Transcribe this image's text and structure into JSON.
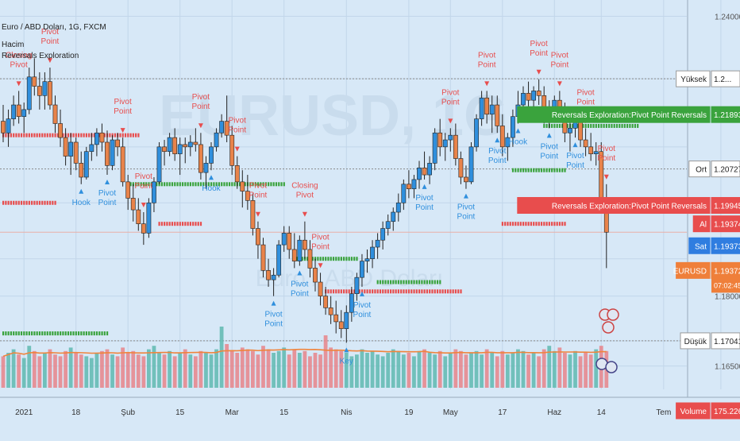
{
  "header": {
    "symbol_title": "Euro / ABD Doları, 1G, FXCM",
    "volume_label": "Hacim",
    "study_label": "Reversals Exploration"
  },
  "watermark": {
    "symbol": "EURUSD, 1G",
    "name": "Euro / ABD Doları"
  },
  "price_labels": [
    {
      "text": "Yüksek",
      "value": "1.2...",
      "price": 1.2266,
      "bg": "#ffffff",
      "fg": "#222222"
    },
    {
      "text": "Reversals Exploration:Pivot Point Reversals",
      "value": "1.21893",
      "price": 1.21893,
      "bg": "#3aa33d",
      "fg": "#ffffff"
    },
    {
      "text": "Ort",
      "value": "1.20727",
      "price": 1.20727,
      "bg": "#ffffff",
      "fg": "#222222"
    },
    {
      "text": "Reversals Exploration:Pivot Point Reversals",
      "value": "1.19945",
      "price": 1.19945,
      "bg": "#e84d4d",
      "fg": "#ffffff"
    },
    {
      "text": "Al",
      "value": "1.19374",
      "price": 1.1955,
      "bg": "#e84d4d",
      "fg": "#ffffff"
    },
    {
      "text": "Sat",
      "value": "1.19373",
      "price": 1.1908,
      "bg": "#2f7de0",
      "fg": "#ffffff"
    },
    {
      "text": "EURUSD",
      "value": "1.19372",
      "price": 1.1855,
      "bg": "#ef7f3a",
      "fg": "#ffffff",
      "sub": "07:02:45"
    },
    {
      "text": "Düşük",
      "value": "1.17041",
      "price": 1.17041,
      "bg": "#ffffff",
      "fg": "#222222"
    },
    {
      "text": "Volume",
      "value": "175.226K",
      "price": 1.1554,
      "bg": "#e84d4d",
      "fg": "#ffffff"
    }
  ],
  "y_axis_ticks": [
    {
      "label": "1.24000",
      "price": 1.24
    },
    {
      "label": "1.18000",
      "price": 1.18
    },
    {
      "label": "1.16500",
      "price": 1.165
    }
  ],
  "x_axis_ticks": [
    {
      "label": "2021",
      "index": 4
    },
    {
      "label": "18",
      "index": 14
    },
    {
      "label": "Şub",
      "index": 24
    },
    {
      "label": "15",
      "index": 34
    },
    {
      "label": "Mar",
      "index": 44
    },
    {
      "label": "15",
      "index": 54
    },
    {
      "label": "Nis",
      "index": 66
    },
    {
      "label": "19",
      "index": 78
    },
    {
      "label": "May",
      "index": 86
    },
    {
      "label": "17",
      "index": 96
    },
    {
      "label": "Haz",
      "index": 106
    },
    {
      "label": "14",
      "index": 115
    },
    {
      "label": "Tem",
      "index": 127
    },
    {
      "label": "19",
      "index": 138
    }
  ],
  "annotations": {
    "pivot_point_label": "Pivot Point",
    "hook_label": "Hook",
    "closing_pivot_label": "Closing Pivot",
    "key_label": "Key",
    "bear": [
      {
        "index": 3,
        "text": "Closing Pivot"
      },
      {
        "index": 9,
        "text": "Pivot Point"
      },
      {
        "index": 23,
        "text": "Pivot Point"
      },
      {
        "index": 27,
        "text": "Pivot Point"
      },
      {
        "index": 38,
        "text": "Pivot Point"
      },
      {
        "index": 45,
        "text": "Pivot Point"
      },
      {
        "index": 49,
        "text": "Pivot Point"
      },
      {
        "index": 58,
        "text": "Closing Pivot"
      },
      {
        "index": 61,
        "text": "Pivot Point"
      },
      {
        "index": 86,
        "text": "Pivot Point"
      },
      {
        "index": 93,
        "text": "Pivot Point"
      },
      {
        "index": 103,
        "text": "Pivot Point"
      },
      {
        "index": 107,
        "text": "Pivot Point"
      },
      {
        "index": 112,
        "text": "Pivot Point"
      },
      {
        "index": 116,
        "text": "Pivot Point"
      }
    ],
    "bull": [
      {
        "index": 15,
        "text": "Hook"
      },
      {
        "index": 20,
        "text": "Pivot Point"
      },
      {
        "index": 40,
        "text": "Hook"
      },
      {
        "index": 52,
        "text": "Pivot Point"
      },
      {
        "index": 57,
        "text": "Pivot Point"
      },
      {
        "index": 66,
        "text": "Key"
      },
      {
        "index": 69,
        "text": "Pivot Point"
      },
      {
        "index": 81,
        "text": "Pivot Point"
      },
      {
        "index": 89,
        "text": "Pivot Point"
      },
      {
        "index": 95,
        "text": "Pivot Point"
      },
      {
        "index": 99,
        "text": "Hook"
      },
      {
        "index": 105,
        "text": "Pivot Point"
      },
      {
        "index": 110,
        "text": "Pivot Point"
      }
    ]
  },
  "chart_data": {
    "type": "candlestick",
    "title": "Euro / ABD Doları, 1G, FXCM",
    "ylim": [
      1.16,
      1.2435
    ],
    "colors": {
      "up": "#2f8fdd",
      "down": "#e8834a",
      "vol_up": "#5fb8b0",
      "vol_down": "#e8848a",
      "vol_ma": "#f0843c",
      "pivot_red": "#e84d4d",
      "pivot_green": "#3aa33d"
    },
    "candles": [
      [
        1.2175,
        1.221,
        1.213,
        1.215
      ],
      [
        1.215,
        1.22,
        1.212,
        1.218
      ],
      [
        1.218,
        1.223,
        1.2165,
        1.221
      ],
      [
        1.221,
        1.224,
        1.217,
        1.2185
      ],
      [
        1.2185,
        1.2215,
        1.215,
        1.22
      ],
      [
        1.22,
        1.229,
        1.219,
        1.227
      ],
      [
        1.227,
        1.231,
        1.223,
        1.225
      ],
      [
        1.225,
        1.228,
        1.22,
        1.223
      ],
      [
        1.223,
        1.228,
        1.22,
        1.226
      ],
      [
        1.226,
        1.229,
        1.22,
        1.221
      ],
      [
        1.221,
        1.223,
        1.215,
        1.217
      ],
      [
        1.217,
        1.22,
        1.212,
        1.214
      ],
      [
        1.214,
        1.216,
        1.208,
        1.21
      ],
      [
        1.21,
        1.215,
        1.206,
        1.213
      ],
      [
        1.213,
        1.214,
        1.207,
        1.2085
      ],
      [
        1.2085,
        1.211,
        1.204,
        1.2055
      ],
      [
        1.2055,
        1.212,
        1.205,
        1.211
      ],
      [
        1.211,
        1.215,
        1.209,
        1.2125
      ],
      [
        1.2125,
        1.216,
        1.21,
        1.215
      ],
      [
        1.215,
        1.217,
        1.211,
        1.213
      ],
      [
        1.213,
        1.2155,
        1.206,
        1.208
      ],
      [
        1.208,
        1.2145,
        1.207,
        1.2135
      ],
      [
        1.2135,
        1.215,
        1.21,
        1.212
      ],
      [
        1.212,
        1.214,
        1.2035,
        1.2045
      ],
      [
        1.2045,
        1.206,
        1.1985,
        1.201
      ],
      [
        1.201,
        1.204,
        1.196,
        1.1985
      ],
      [
        1.1985,
        1.201,
        1.194,
        1.1955
      ],
      [
        1.1955,
        1.198,
        1.191,
        1.1935
      ],
      [
        1.1935,
        1.201,
        1.1925,
        1.2
      ],
      [
        1.2,
        1.2055,
        1.198,
        1.2045
      ],
      [
        1.2045,
        1.213,
        1.204,
        1.212
      ],
      [
        1.212,
        1.2135,
        1.208,
        1.211
      ],
      [
        1.211,
        1.215,
        1.21,
        1.214
      ],
      [
        1.214,
        1.216,
        1.209,
        1.2105
      ],
      [
        1.2105,
        1.214,
        1.206,
        1.2125
      ],
      [
        1.2125,
        1.214,
        1.2085,
        1.212
      ],
      [
        1.212,
        1.2145,
        1.21,
        1.213
      ],
      [
        1.213,
        1.216,
        1.211,
        1.2125
      ],
      [
        1.2125,
        1.215,
        1.205,
        1.2065
      ],
      [
        1.2065,
        1.21,
        1.203,
        1.2085
      ],
      [
        1.2085,
        1.213,
        1.207,
        1.212
      ],
      [
        1.212,
        1.216,
        1.211,
        1.215
      ],
      [
        1.215,
        1.219,
        1.214,
        1.2175
      ],
      [
        1.2175,
        1.223,
        1.213,
        1.2145
      ],
      [
        1.2145,
        1.2165,
        1.206,
        1.208
      ],
      [
        1.208,
        1.21,
        1.203,
        1.2045
      ],
      [
        1.2045,
        1.207,
        1.199,
        1.2025
      ],
      [
        1.2025,
        1.206,
        1.1985,
        1.2005
      ],
      [
        1.2005,
        1.202,
        1.193,
        1.1945
      ],
      [
        1.1945,
        1.196,
        1.188,
        1.191
      ],
      [
        1.191,
        1.1925,
        1.184,
        1.1855
      ],
      [
        1.1855,
        1.188,
        1.182,
        1.1835
      ],
      [
        1.1835,
        1.186,
        1.18,
        1.1845
      ],
      [
        1.1845,
        1.192,
        1.184,
        1.191
      ],
      [
        1.191,
        1.195,
        1.1895,
        1.1935
      ],
      [
        1.1935,
        1.195,
        1.188,
        1.19
      ],
      [
        1.19,
        1.1935,
        1.186,
        1.1875
      ],
      [
        1.1875,
        1.193,
        1.1865,
        1.192
      ],
      [
        1.192,
        1.196,
        1.188,
        1.19
      ],
      [
        1.19,
        1.192,
        1.184,
        1.186
      ],
      [
        1.186,
        1.188,
        1.181,
        1.183
      ],
      [
        1.183,
        1.185,
        1.178,
        1.18
      ],
      [
        1.18,
        1.182,
        1.176,
        1.1775
      ],
      [
        1.1775,
        1.18,
        1.174,
        1.176
      ],
      [
        1.176,
        1.179,
        1.172,
        1.1745
      ],
      [
        1.1745,
        1.177,
        1.171,
        1.173
      ],
      [
        1.173,
        1.178,
        1.17,
        1.1765
      ],
      [
        1.1765,
        1.182,
        1.1745,
        1.1805
      ],
      [
        1.1805,
        1.185,
        1.179,
        1.184
      ],
      [
        1.184,
        1.189,
        1.182,
        1.1875
      ],
      [
        1.1875,
        1.19,
        1.185,
        1.188
      ],
      [
        1.188,
        1.192,
        1.186,
        1.1905
      ],
      [
        1.1905,
        1.1935,
        1.188,
        1.192
      ],
      [
        1.192,
        1.196,
        1.19,
        1.1945
      ],
      [
        1.1945,
        1.1975,
        1.193,
        1.196
      ],
      [
        1.196,
        1.199,
        1.194,
        1.198
      ],
      [
        1.198,
        1.202,
        1.196,
        1.2
      ],
      [
        1.2,
        1.205,
        1.1985,
        1.204
      ],
      [
        1.204,
        1.207,
        1.201,
        1.203
      ],
      [
        1.203,
        1.206,
        1.201,
        1.205
      ],
      [
        1.205,
        1.209,
        1.203,
        1.2075
      ],
      [
        1.2075,
        1.211,
        1.205,
        1.206
      ],
      [
        1.206,
        1.21,
        1.204,
        1.2085
      ],
      [
        1.2085,
        1.216,
        1.207,
        1.215
      ],
      [
        1.215,
        1.218,
        1.21,
        1.212
      ],
      [
        1.212,
        1.215,
        1.209,
        1.2135
      ],
      [
        1.2135,
        1.216,
        1.211,
        1.2145
      ],
      [
        1.2145,
        1.217,
        1.208,
        1.2095
      ],
      [
        1.2095,
        1.211,
        1.204,
        1.2055
      ],
      [
        1.2055,
        1.208,
        1.203,
        1.2045
      ],
      [
        1.2045,
        1.213,
        1.204,
        1.212
      ],
      [
        1.212,
        1.219,
        1.211,
        1.218
      ],
      [
        1.218,
        1.224,
        1.2165,
        1.2225
      ],
      [
        1.2225,
        1.224,
        1.217,
        1.219
      ],
      [
        1.219,
        1.223,
        1.215,
        1.221
      ],
      [
        1.221,
        1.223,
        1.215,
        1.2165
      ],
      [
        1.2165,
        1.219,
        1.21,
        1.212
      ],
      [
        1.212,
        1.215,
        1.209,
        1.214
      ],
      [
        1.214,
        1.22,
        1.212,
        1.2185
      ],
      [
        1.2185,
        1.224,
        1.217,
        1.221
      ],
      [
        1.221,
        1.225,
        1.219,
        1.2235
      ],
      [
        1.2235,
        1.226,
        1.22,
        1.222
      ],
      [
        1.222,
        1.225,
        1.2195,
        1.224
      ],
      [
        1.224,
        1.2265,
        1.221,
        1.223
      ],
      [
        1.223,
        1.225,
        1.217,
        1.2185
      ],
      [
        1.2185,
        1.222,
        1.216,
        1.2205
      ],
      [
        1.2205,
        1.223,
        1.2185,
        1.222
      ],
      [
        1.222,
        1.224,
        1.218,
        1.2195
      ],
      [
        1.2195,
        1.2215,
        1.213,
        1.215
      ],
      [
        1.215,
        1.218,
        1.211,
        1.216
      ],
      [
        1.216,
        1.219,
        1.214,
        1.2175
      ],
      [
        1.2175,
        1.22,
        1.212,
        1.2135
      ],
      [
        1.2135,
        1.216,
        1.21,
        1.212
      ],
      [
        1.212,
        1.215,
        1.209,
        1.2105
      ],
      [
        1.2105,
        1.213,
        1.208,
        1.211
      ],
      [
        1.211,
        1.213,
        1.199,
        1.201
      ],
      [
        1.201,
        1.204,
        1.186,
        1.1937
      ]
    ],
    "volume": [
      18,
      20,
      22,
      19,
      17,
      24,
      21,
      18,
      20,
      22,
      19,
      18,
      21,
      23,
      20,
      19,
      18,
      17,
      20,
      21,
      22,
      19,
      18,
      23,
      20,
      21,
      19,
      18,
      22,
      24,
      20,
      19,
      21,
      18,
      20,
      22,
      19,
      18,
      21,
      20,
      19,
      22,
      35,
      25,
      21,
      20,
      23,
      22,
      21,
      19,
      24,
      22,
      20,
      21,
      23,
      19,
      22,
      20,
      21,
      18,
      20,
      19,
      30,
      23,
      22,
      21,
      20,
      18,
      19,
      22,
      20,
      21,
      19,
      18,
      20,
      22,
      21,
      19,
      20,
      18,
      21,
      22,
      20,
      19,
      21,
      18,
      20,
      22,
      21,
      19,
      20,
      21,
      19,
      22,
      20,
      18,
      21,
      19,
      20,
      22,
      21,
      19,
      20,
      18,
      22,
      24,
      21,
      23,
      20,
      19,
      21,
      18,
      20,
      19,
      22,
      24,
      21
    ],
    "pivot_levels": [
      {
        "color": "red",
        "price": 1.2,
        "from": 0,
        "to": 10
      },
      {
        "color": "green",
        "price": 1.172,
        "from": 0,
        "to": 20
      },
      {
        "color": "red",
        "price": 1.2145,
        "from": 0,
        "to": 26
      },
      {
        "color": "green",
        "price": 1.204,
        "from": 24,
        "to": 54
      },
      {
        "color": "red",
        "price": 1.1955,
        "from": 30,
        "to": 38
      },
      {
        "color": "green",
        "price": 1.188,
        "from": 56,
        "to": 68
      },
      {
        "color": "red",
        "price": 1.181,
        "from": 62,
        "to": 88
      },
      {
        "color": "green",
        "price": 1.183,
        "from": 72,
        "to": 84
      },
      {
        "color": "red",
        "price": 1.1955,
        "from": 96,
        "to": 108
      },
      {
        "color": "green",
        "price": 1.207,
        "from": 98,
        "to": 108
      },
      {
        "color": "green",
        "price": 1.2165,
        "from": 104,
        "to": 122
      }
    ]
  }
}
